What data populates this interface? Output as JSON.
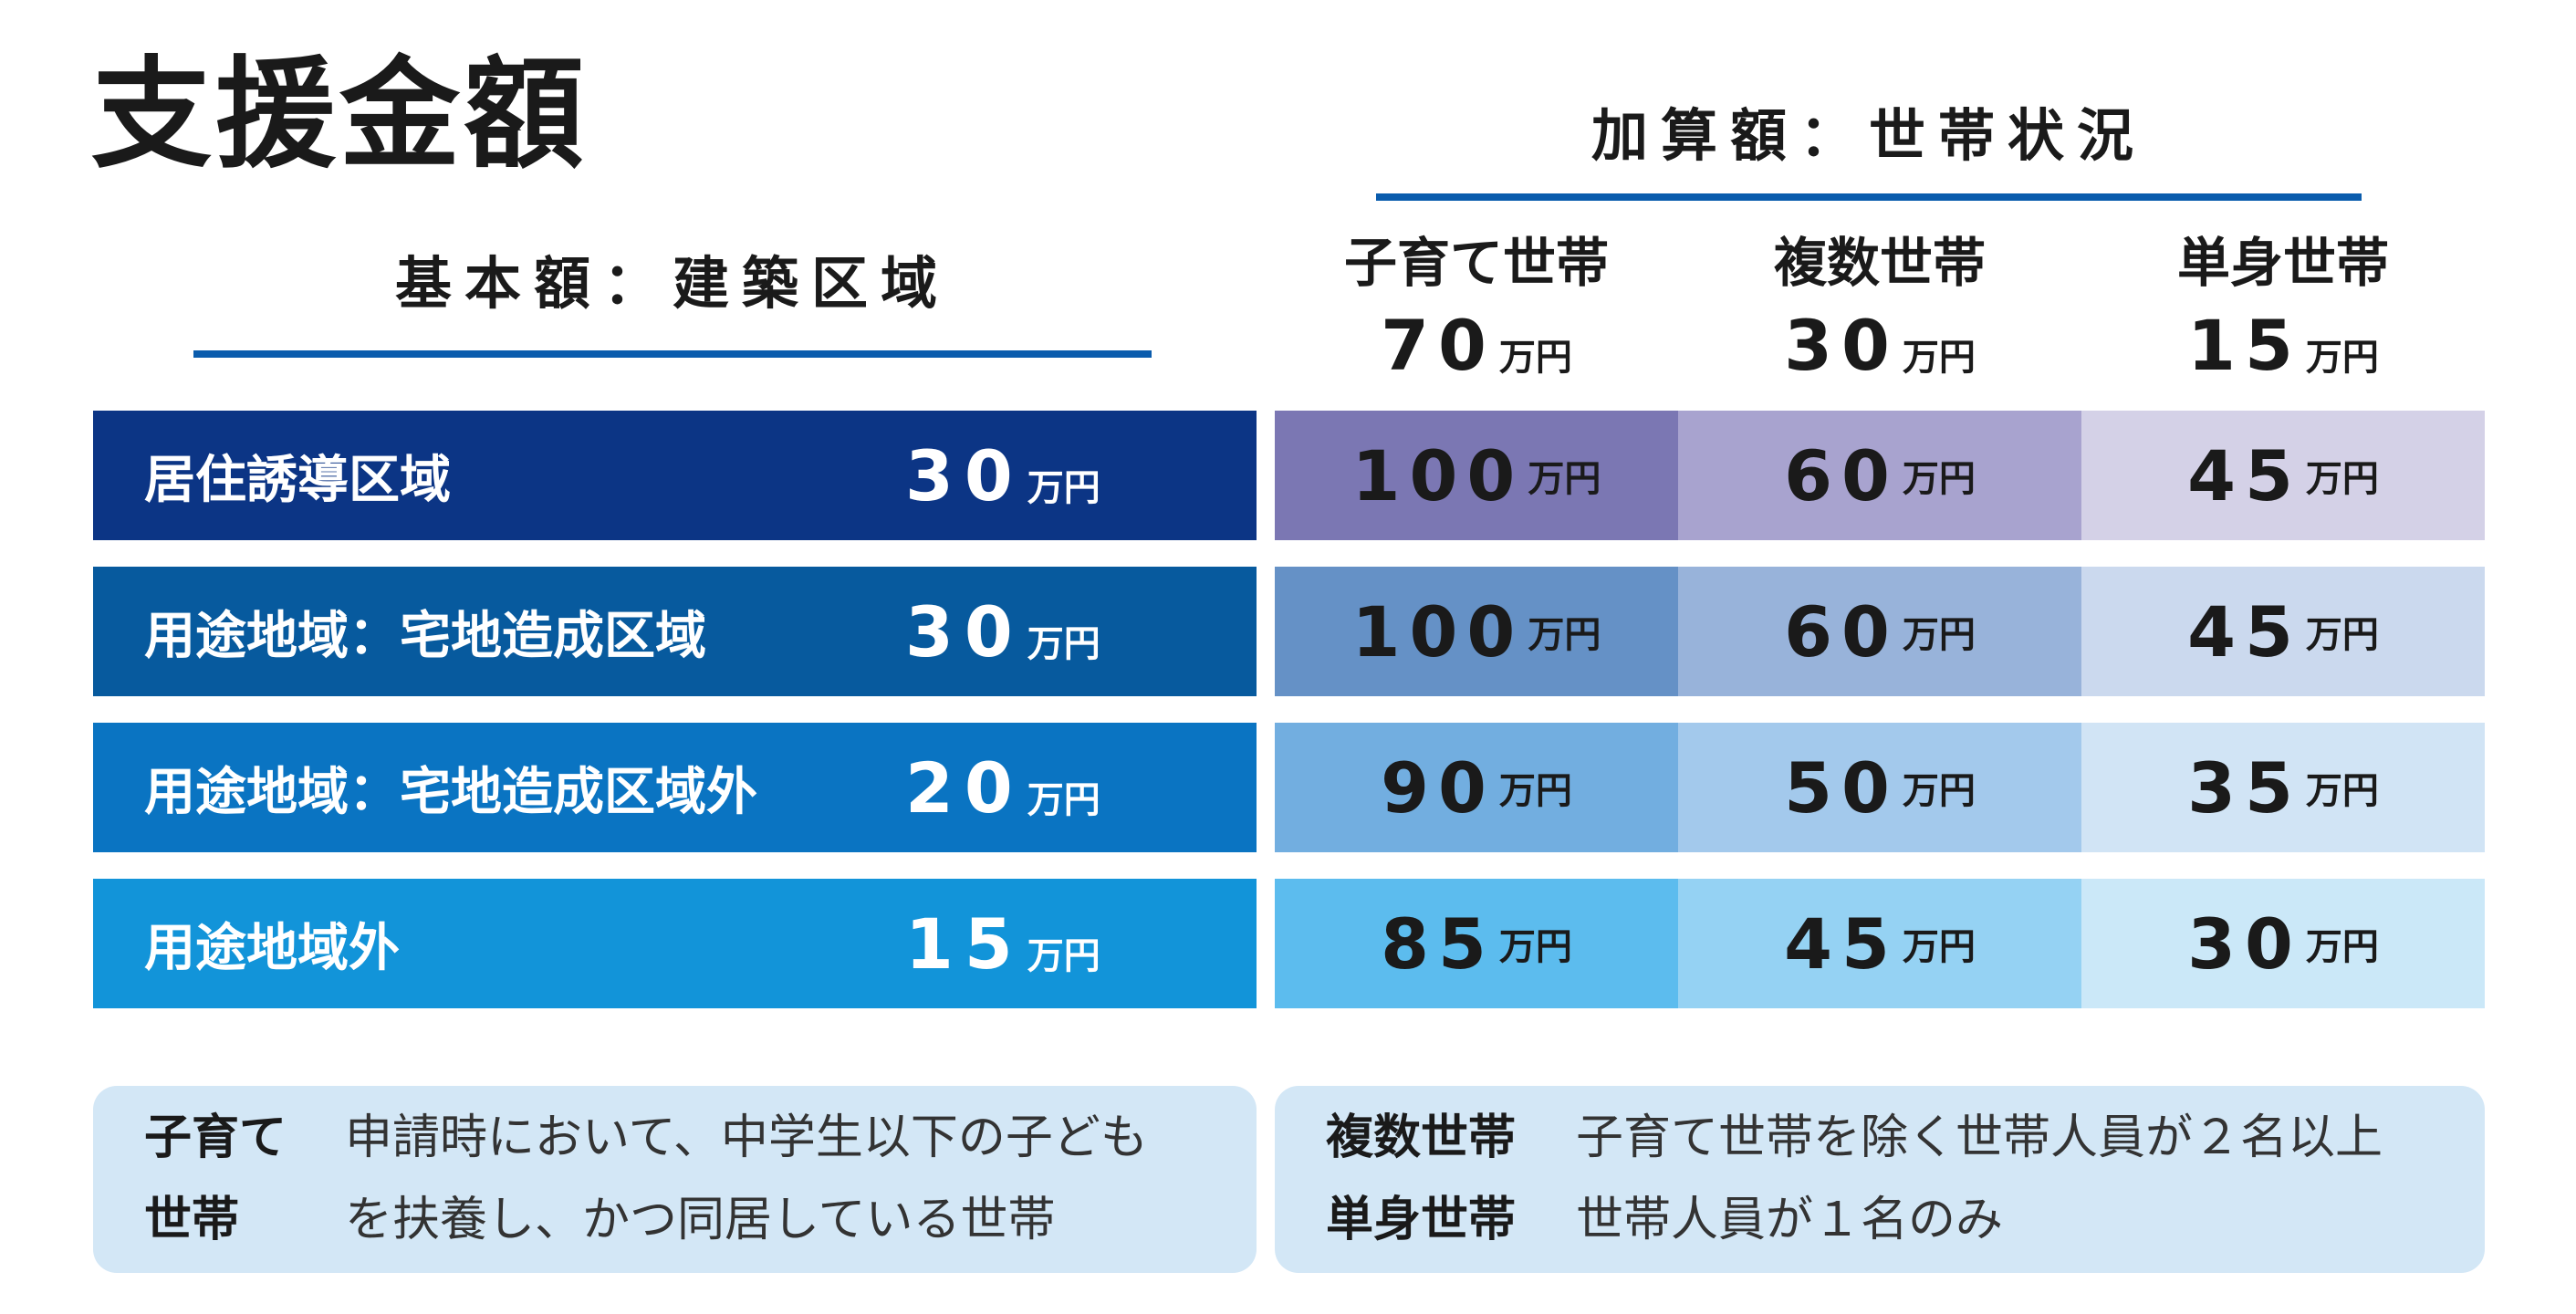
{
  "title": "支援金額",
  "base": {
    "heading": "基本額：建築区域",
    "unit": "万円",
    "rows": [
      {
        "label": "居住誘導区域",
        "amount": "30",
        "color": "#0c3585"
      },
      {
        "label": "用途地域：宅地造成区域",
        "amount": "30",
        "color": "#075a9e"
      },
      {
        "label": "用途地域：宅地造成区域外",
        "amount": "20",
        "color": "#0a74c2"
      },
      {
        "label": "用途地域外",
        "amount": "15",
        "color": "#1294d9"
      }
    ]
  },
  "addition": {
    "heading": "加算額：世帯状況",
    "unit": "万円",
    "columns": [
      {
        "label": "子育て世帯",
        "amount": "70"
      },
      {
        "label": "複数世帯",
        "amount": "30"
      },
      {
        "label": "単身世帯",
        "amount": "15"
      }
    ],
    "rows": [
      {
        "values": [
          "100",
          "60",
          "45"
        ],
        "colors": [
          "#7b77b3",
          "#a8a3cf",
          "#d4d1e7"
        ]
      },
      {
        "values": [
          "100",
          "60",
          "45"
        ],
        "colors": [
          "#6591c6",
          "#98b3da",
          "#cbd9ee"
        ]
      },
      {
        "values": [
          "90",
          "50",
          "35"
        ],
        "colors": [
          "#72aee0",
          "#a3c9ec",
          "#d1e4f5"
        ]
      },
      {
        "values": [
          "85",
          "45",
          "30"
        ],
        "colors": [
          "#5cbcee",
          "#95d2f3",
          "#cbe8f8"
        ]
      }
    ]
  },
  "notes": {
    "left": {
      "term_line1": "子育て",
      "term_line2": "世帯",
      "desc_line1": "申請時において、中学生以下の子ども",
      "desc_line2": "を扶養し、かつ同居している世帯"
    },
    "right": {
      "term1": "複数世帯",
      "desc1": "子育て世帯を除く世帯人員が２名以上",
      "term2": "単身世帯",
      "desc2": "世帯人員が１名のみ"
    }
  }
}
